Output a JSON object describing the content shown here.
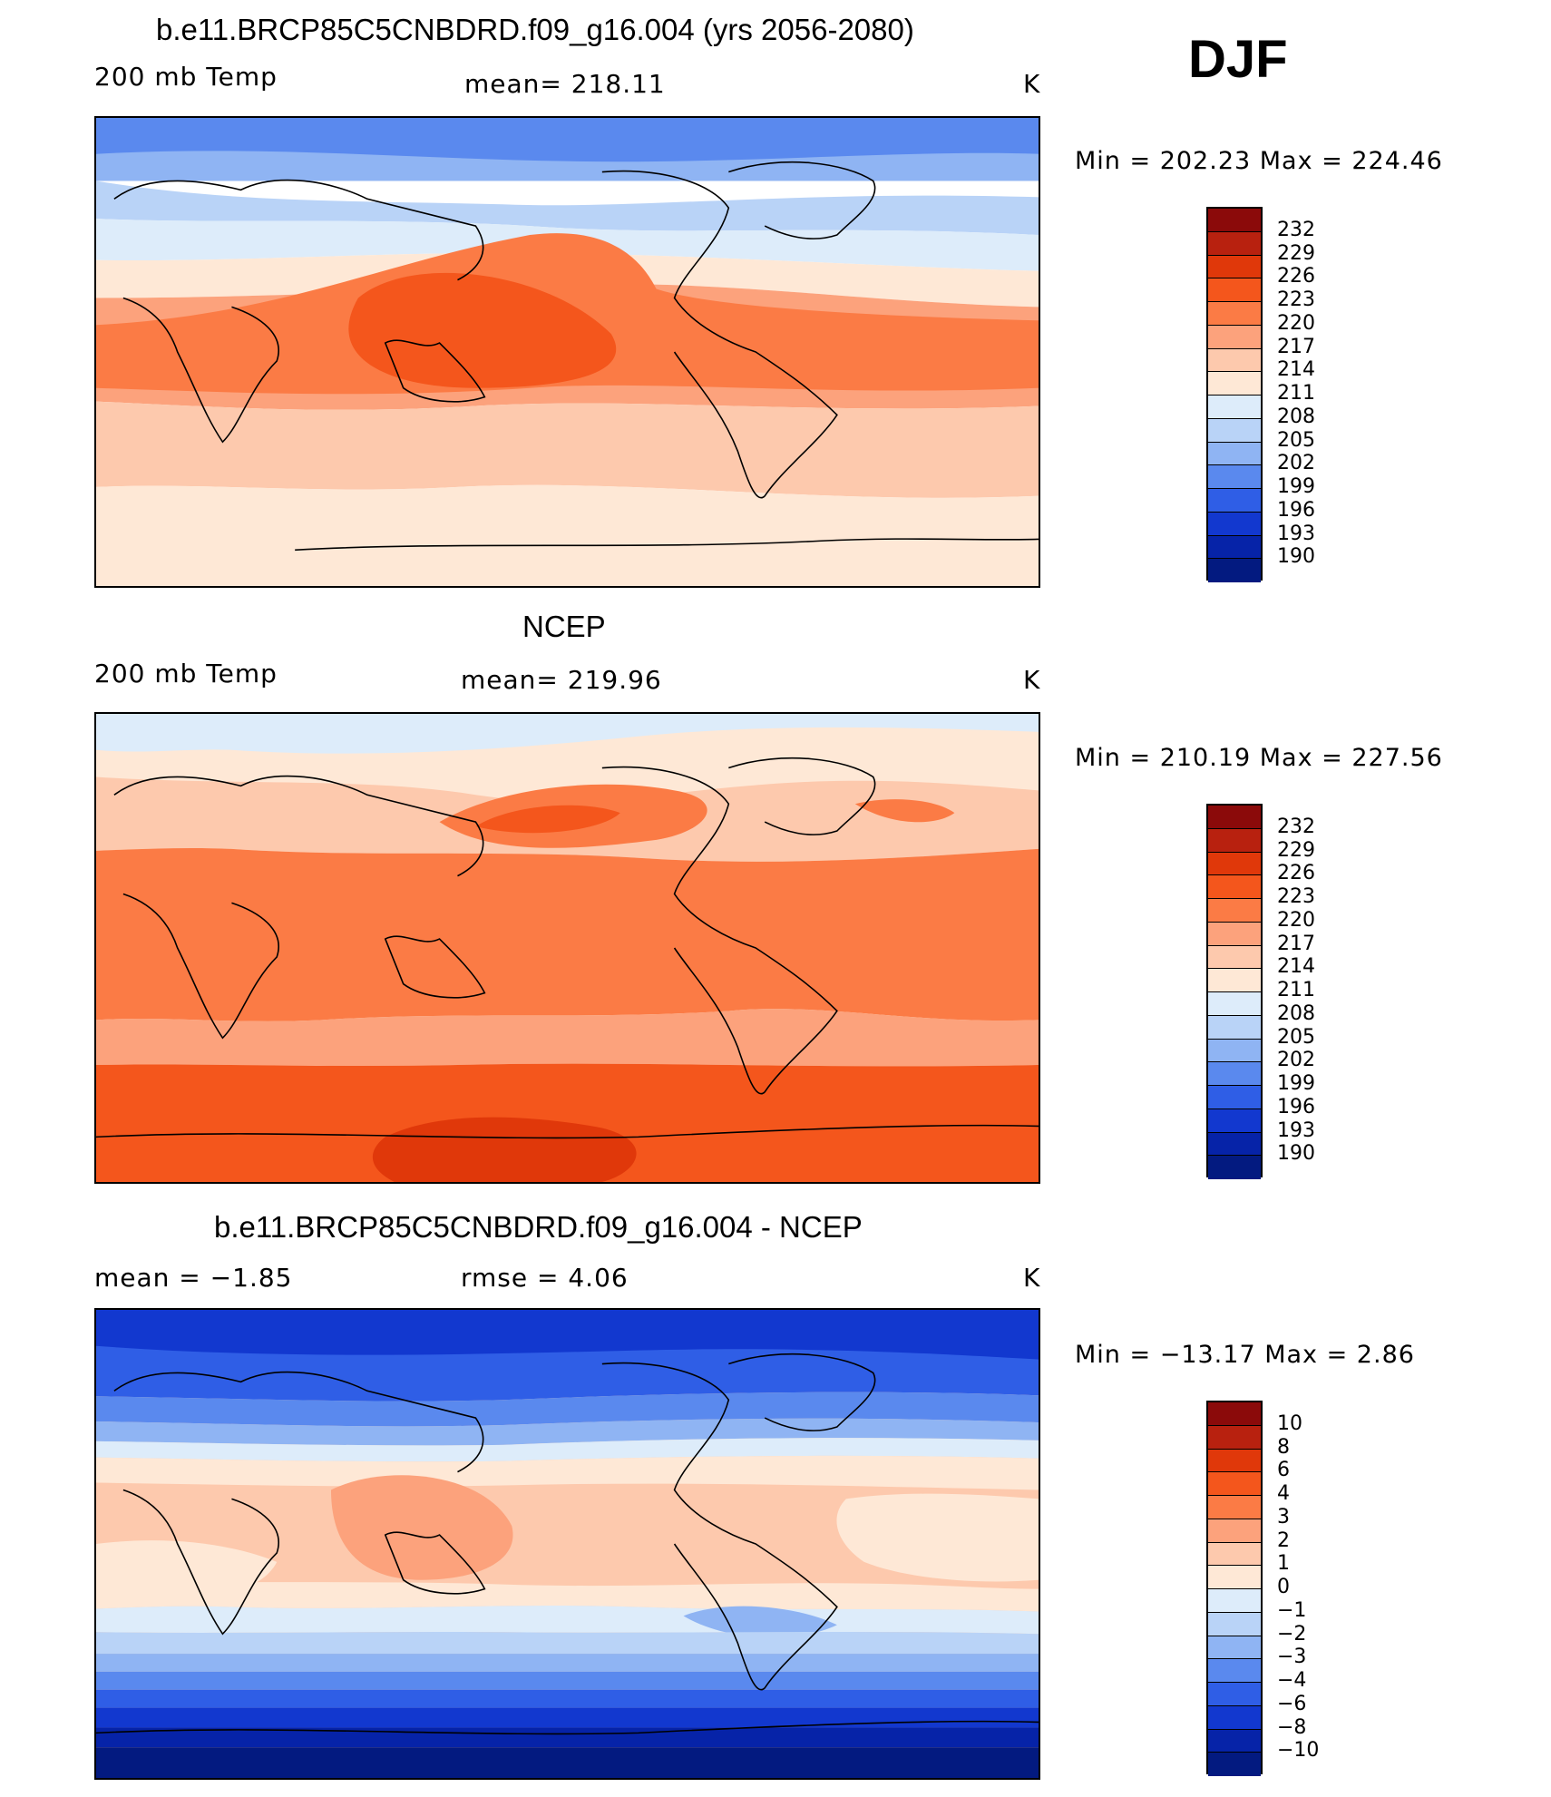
{
  "season": "DJF",
  "panels": [
    {
      "title": "b.e11.BRCP85C5CNBDRD.f09_g16.004 (yrs 2056-2080)",
      "left_label": "200 mb Temp",
      "center_label": "mean=  218.11",
      "units": "K",
      "minmax": "Min  =  202.23  Max  =  224.46",
      "colorbar_levels": [
        "232",
        "229",
        "226",
        "223",
        "220",
        "217",
        "214",
        "211",
        "208",
        "205",
        "202",
        "199",
        "196",
        "193",
        "190"
      ],
      "field": "model"
    },
    {
      "title": "NCEP",
      "left_label": "200 mb Temp",
      "center_label": "mean=  219.96",
      "units": "K",
      "minmax": "Min  =  210.19  Max  =  227.56",
      "colorbar_levels": [
        "232",
        "229",
        "226",
        "223",
        "220",
        "217",
        "214",
        "211",
        "208",
        "205",
        "202",
        "199",
        "196",
        "193",
        "190"
      ],
      "field": "obs"
    },
    {
      "title": "b.e11.BRCP85C5CNBDRD.f09_g16.004 - NCEP",
      "left_label": "mean  =    −1.85",
      "center_label": "rmse  =     4.06",
      "units": "K",
      "minmax": "Min  =  −13.17  Max  =     2.86",
      "colorbar_levels": [
        "10",
        "8",
        "6",
        "4",
        "3",
        "2",
        "1",
        "0",
        "−1",
        "−2",
        "−3",
        "−4",
        "−6",
        "−8",
        "−10"
      ],
      "field": "diff"
    }
  ],
  "colors": {
    "palette_warm_to_cold": [
      "#8b0a0a",
      "#b8210f",
      "#e0380a",
      "#f4561c",
      "#fb7b45",
      "#fca27c",
      "#fdc9ad",
      "#fee8d6",
      "#ddecfa",
      "#b9d3f7",
      "#8fb4f3",
      "#5a89ee",
      "#2f5ee6",
      "#1238cf",
      "#0623a8",
      "#031a80"
    ]
  }
}
